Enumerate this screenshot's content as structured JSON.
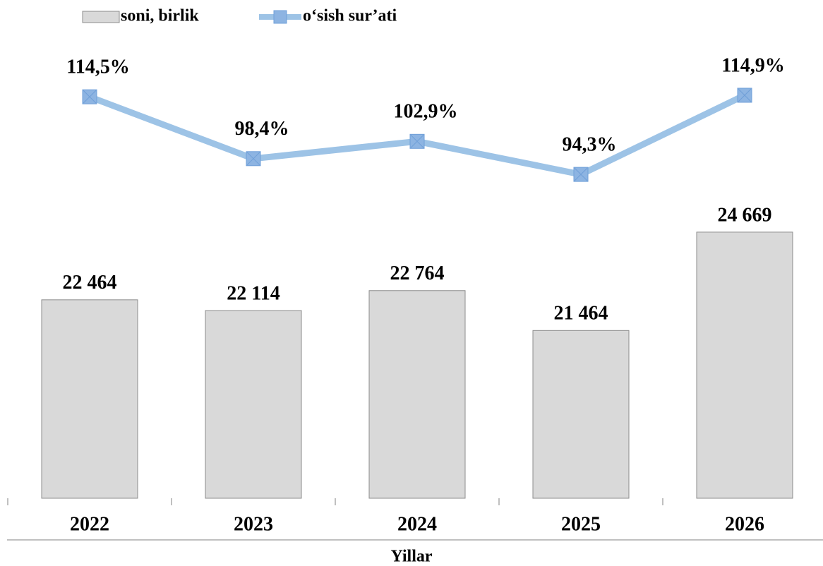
{
  "chart_data": {
    "type": "bar_line",
    "x_label": "Yillar",
    "categories": [
      "2022",
      "2023",
      "2024",
      "2025",
      "2026"
    ],
    "series": [
      {
        "name": "soni, birlik",
        "type": "bar",
        "color": "#d9d9d9",
        "values": [
          22464,
          22114,
          22764,
          21464,
          24669
        ],
        "value_labels": [
          "22 464",
          "22 114",
          "22 764",
          "21 464",
          "24 669"
        ]
      },
      {
        "name": "o‘sish sur’ati",
        "type": "line",
        "axis": "y2",
        "color": "#9dc3e6",
        "values": [
          114.5,
          98.4,
          102.9,
          94.3,
          114.9
        ],
        "value_labels": [
          "114,5%",
          "98,4%",
          "102,9%",
          "94,3%",
          "114,9%"
        ]
      }
    ],
    "ylim": [
      16000,
      26000
    ],
    "y2lim": [
      10,
      125
    ],
    "legend": "top-left"
  }
}
